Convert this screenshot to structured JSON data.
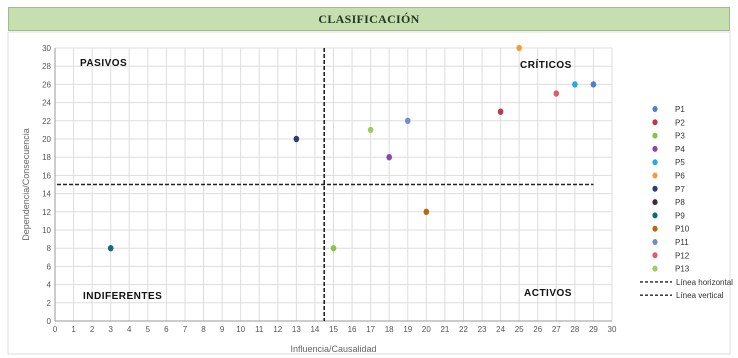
{
  "title": "CLASIFICACIÓN",
  "chart_data": {
    "type": "scatter",
    "xlabel": "Influencia/Causalidad",
    "ylabel": "Dependencia/Consecuencia",
    "xlim": [
      0,
      30
    ],
    "ylim": [
      0,
      30
    ],
    "xticks": [
      0,
      1,
      2,
      3,
      4,
      5,
      6,
      7,
      8,
      9,
      10,
      11,
      12,
      13,
      14,
      15,
      16,
      17,
      18,
      19,
      20,
      21,
      22,
      23,
      24,
      25,
      26,
      27,
      28,
      29,
      30
    ],
    "yticks": [
      0,
      2,
      4,
      6,
      8,
      10,
      12,
      14,
      16,
      18,
      20,
      22,
      24,
      26,
      28,
      30
    ],
    "grid": true,
    "legend_position": "right",
    "series": [
      {
        "name": "P1",
        "x": 29,
        "y": 26,
        "color": "#4e7fc9"
      },
      {
        "name": "P2",
        "x": 24,
        "y": 23,
        "color": "#c0394b"
      },
      {
        "name": "P3",
        "x": 15,
        "y": 8,
        "color": "#8bc34a"
      },
      {
        "name": "P4",
        "x": 18,
        "y": 18,
        "color": "#8e44ad"
      },
      {
        "name": "P5",
        "x": 28,
        "y": 26,
        "color": "#29a9e0"
      },
      {
        "name": "P6",
        "x": 25,
        "y": 30,
        "color": "#f39c42"
      },
      {
        "name": "P7",
        "x": 13,
        "y": 20,
        "color": "#2c3e70"
      },
      {
        "name": "P8",
        "x": null,
        "y": null,
        "color": "#3d2a4a"
      },
      {
        "name": "P9",
        "x": 3,
        "y": 8,
        "color": "#0f6d7a"
      },
      {
        "name": "P10",
        "x": 20,
        "y": 12,
        "color": "#c0650f"
      },
      {
        "name": "P11",
        "x": 19,
        "y": 22,
        "color": "#6f8fc4"
      },
      {
        "name": "P12",
        "x": 27,
        "y": 25,
        "color": "#d95f6b"
      },
      {
        "name": "P13",
        "x": 17,
        "y": 21,
        "color": "#9ccc65"
      }
    ],
    "reference_lines": [
      {
        "name": "Línea horizontal",
        "orientation": "horizontal",
        "value": 15,
        "style": "dashed"
      },
      {
        "name": "Línea vertical",
        "orientation": "vertical",
        "value": 14.5,
        "style": "dashed"
      }
    ],
    "annotations": [
      "PASIVOS",
      "CRÍTICOS",
      "INDIFERENTES",
      "ACTIVOS"
    ]
  }
}
